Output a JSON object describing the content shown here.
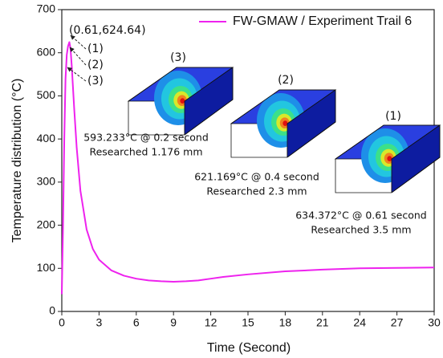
{
  "chart_data": {
    "type": "line",
    "x_label": "Time (Second)",
    "y_label": "Temperature distribution (°C)",
    "x": [
      0,
      0.1,
      0.2,
      0.3,
      0.4,
      0.5,
      0.61,
      0.7,
      0.8,
      1.0,
      1.2,
      1.5,
      2,
      2.5,
      3,
      4,
      5,
      6,
      7,
      8,
      9,
      10,
      11,
      12,
      13,
      15,
      18,
      21,
      24,
      27,
      30
    ],
    "series": [
      {
        "name": "FW-GMAW / Experiment Trail 6",
        "color": "#ee22ee",
        "values": [
          40,
          200,
          400,
          540,
          595,
          615,
          624.64,
          610,
          570,
          470,
          380,
          280,
          190,
          145,
          120,
          95,
          83,
          76,
          72,
          70,
          69,
          70,
          72,
          76,
          80,
          86,
          93,
          97,
          100,
          101,
          102
        ]
      }
    ],
    "xlim": [
      0,
      30
    ],
    "ylim": [
      0,
      700
    ],
    "xticks": [
      0,
      3,
      6,
      9,
      12,
      15,
      18,
      21,
      24,
      27,
      30
    ],
    "yticks": [
      0,
      100,
      200,
      300,
      400,
      500,
      600,
      700
    ],
    "legend": "upper right",
    "annotations": {
      "peak_label": "(0.61,624.64)",
      "markers": [
        "(1)",
        "(2)",
        "(3)"
      ]
    },
    "insets": [
      {
        "label": "(3)",
        "temperature_text": "593.233°C @ 0.2 second",
        "depth_text": "Researched 1.176 mm"
      },
      {
        "label": "(2)",
        "temperature_text": "621.169°C @ 0.4 second",
        "depth_text": "Researched 2.3 mm"
      },
      {
        "label": "(1)",
        "temperature_text": "634.372°C @ 0.61 second",
        "depth_text": "Researched 3.5 mm"
      }
    ]
  }
}
